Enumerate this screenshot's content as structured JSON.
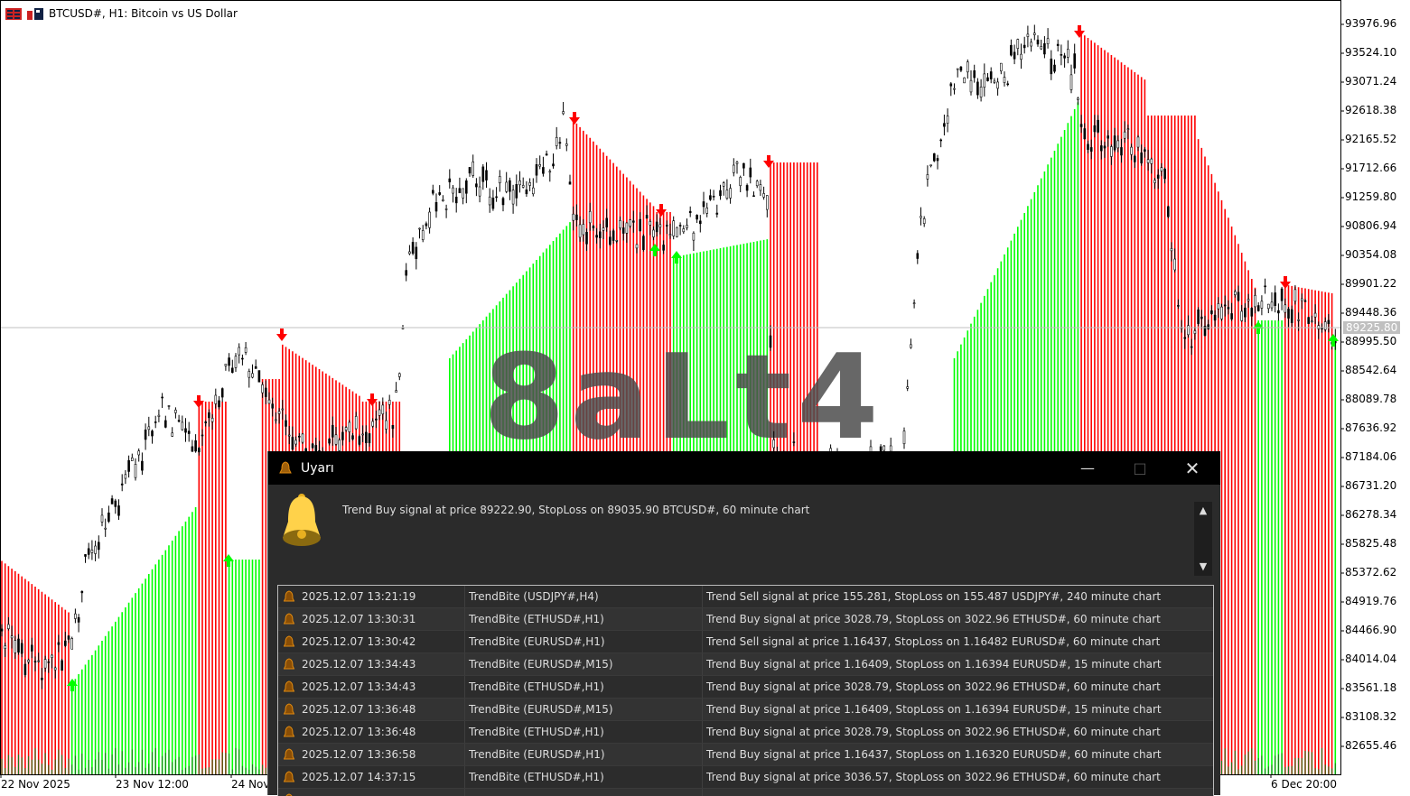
{
  "chart": {
    "title": "BTCUSD#, H1:  Bitcoin vs US Dollar",
    "watermark": "8aLt4",
    "price_axis": [
      "93976.96",
      "93524.10",
      "93071.24",
      "92618.38",
      "92165.52",
      "91712.66",
      "91259.80",
      "90806.94",
      "90354.08",
      "89901.22",
      "89448.36",
      "88995.50",
      "88542.64",
      "88089.78",
      "87636.92",
      "87184.06",
      "86731.20",
      "86278.34",
      "85825.48",
      "85372.62",
      "84919.76",
      "84466.90",
      "84014.04",
      "83561.18",
      "83108.32",
      "82655.46"
    ],
    "current_price": "89225.80",
    "time_axis": [
      "22 Nov 2025",
      "23 Nov 12:00",
      "24 Nov",
      "6 Dec 20:00"
    ],
    "colors": {
      "buy": "#00ff00",
      "sell": "#ff0000",
      "candle": "#000000",
      "watermark": "#4d4d4d"
    }
  },
  "alert": {
    "title": "Uyarı",
    "message": "Trend Buy signal at price 89222.90, StopLoss on 89035.90 BTCUSD#, 60 minute chart",
    "rows": [
      {
        "time": "2025.12.07 13:21:19",
        "source": "TrendBite (USDJPY#,H4)",
        "message": "Trend Sell signal at price 155.281, StopLoss on 155.487 USDJPY#, 240 minute chart"
      },
      {
        "time": "2025.12.07 13:30:31",
        "source": "TrendBite (ETHUSD#,H1)",
        "message": "Trend Buy signal at price 3028.79, StopLoss on 3022.96 ETHUSD#, 60 minute chart"
      },
      {
        "time": "2025.12.07 13:30:42",
        "source": "TrendBite (EURUSD#,H1)",
        "message": "Trend Sell signal at price 1.16437, StopLoss on 1.16482 EURUSD#, 60 minute chart"
      },
      {
        "time": "2025.12.07 13:34:43",
        "source": "TrendBite (EURUSD#,M15)",
        "message": "Trend Buy signal at price 1.16409, StopLoss on 1.16394 EURUSD#, 15 minute chart"
      },
      {
        "time": "2025.12.07 13:34:43",
        "source": "TrendBite (ETHUSD#,H1)",
        "message": "Trend Buy signal at price 3028.79, StopLoss on 3022.96 ETHUSD#, 60 minute chart"
      },
      {
        "time": "2025.12.07 13:36:48",
        "source": "TrendBite (EURUSD#,M15)",
        "message": "Trend Buy signal at price 1.16409, StopLoss on 1.16394 EURUSD#, 15 minute chart"
      },
      {
        "time": "2025.12.07 13:36:48",
        "source": "TrendBite (ETHUSD#,H1)",
        "message": "Trend Buy signal at price 3028.79, StopLoss on 3022.96 ETHUSD#, 60 minute chart"
      },
      {
        "time": "2025.12.07 13:36:58",
        "source": "TrendBite (EURUSD#,H1)",
        "message": "Trend Buy signal at price 1.16437, StopLoss on 1.16320 EURUSD#, 60 minute chart"
      },
      {
        "time": "2025.12.07 14:37:15",
        "source": "TrendBite (ETHUSD#,H1)",
        "message": "Trend Buy signal at price 3036.57, StopLoss on 3022.96 ETHUSD#, 60 minute chart"
      }
    ]
  }
}
